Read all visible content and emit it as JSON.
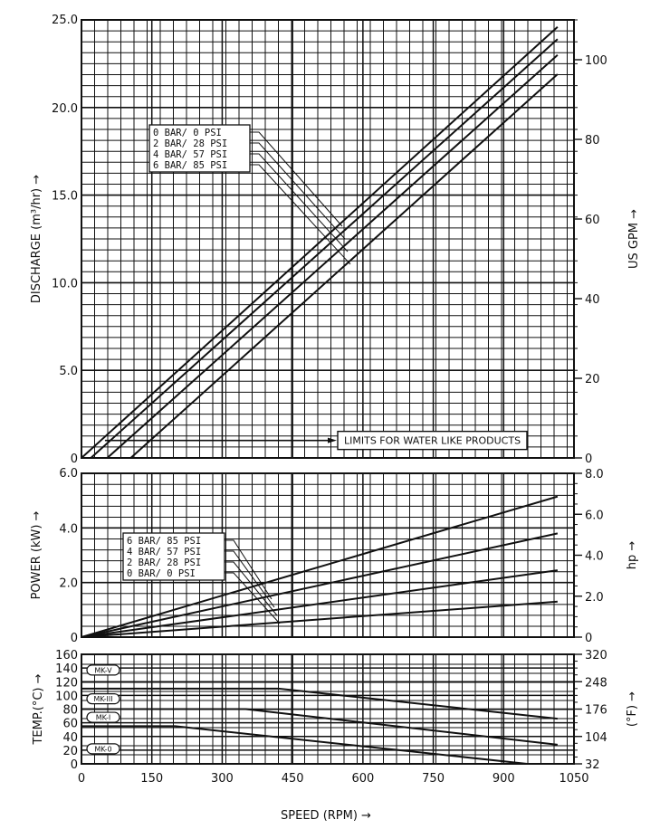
{
  "chart_data": [
    {
      "id": "discharge",
      "type": "line",
      "ylabel": "DISCHARGE (m³/hr) →",
      "y2label": "US GPM →",
      "xlim": [
        0,
        1050
      ],
      "ylim": [
        0,
        25
      ],
      "y2lim": [
        0,
        110
      ],
      "y_ticks": [
        "0",
        "5.0",
        "10.0",
        "15.0",
        "20.0",
        "25.0"
      ],
      "y_tick_values": [
        0,
        5,
        10,
        15,
        20,
        25
      ],
      "y2_ticks": [
        "0",
        "20",
        "40",
        "60",
        "80",
        "100"
      ],
      "y2_tick_values": [
        0,
        20,
        40,
        60,
        80,
        100
      ],
      "grid": true,
      "legend": [
        "0 BAR/ 0 PSI",
        "2 BAR/ 28 PSI",
        "4 BAR/ 57 PSI",
        "6 BAR/ 85 PSI"
      ],
      "series": [
        {
          "name": "0 BAR/ 0 PSI",
          "points": [
            [
              0,
              0
            ],
            [
              1015,
              24.6
            ]
          ]
        },
        {
          "name": "2 BAR/ 28 PSI",
          "points": [
            [
              20,
              0
            ],
            [
              1015,
              23.9
            ]
          ]
        },
        {
          "name": "4 BAR/ 57 PSI",
          "points": [
            [
              55,
              0
            ],
            [
              1015,
              23.0
            ]
          ]
        },
        {
          "name": "6 BAR/ 85 PSI",
          "points": [
            [
              105,
              0
            ],
            [
              1015,
              21.9
            ]
          ]
        }
      ],
      "limit_line": {
        "y": 1.0,
        "x_start": 50,
        "x_end": 520
      },
      "annotation": "LIMITS FOR WATER LIKE PRODUCTS"
    },
    {
      "id": "power",
      "type": "line",
      "ylabel": "POWER (kW) →",
      "y2label": "hp →",
      "xlim": [
        0,
        1050
      ],
      "ylim": [
        0,
        6
      ],
      "y2lim": [
        0,
        8
      ],
      "y_ticks": [
        "0",
        "2.0",
        "4.0",
        "6.0"
      ],
      "y_tick_values": [
        0,
        2,
        4,
        6
      ],
      "y2_ticks": [
        "0",
        "2.0",
        "4.0",
        "6.0",
        "8.0"
      ],
      "y2_tick_values": [
        0,
        2,
        4,
        6,
        8
      ],
      "grid": true,
      "legend": [
        "6 BAR/ 85 PSI",
        "4 BAR/ 57 PSI",
        "2 BAR/ 28 PSI",
        "0 BAR/ 0 PSI"
      ],
      "series": [
        {
          "name": "6 BAR/ 85 PSI",
          "points": [
            [
              0,
              0
            ],
            [
              1015,
              5.15
            ]
          ]
        },
        {
          "name": "4 BAR/ 57 PSI",
          "points": [
            [
              0,
              0
            ],
            [
              1015,
              3.8
            ]
          ]
        },
        {
          "name": "2 BAR/ 28 PSI",
          "points": [
            [
              0,
              0
            ],
            [
              1015,
              2.45
            ]
          ]
        },
        {
          "name": "0 BAR/ 0 PSI",
          "points": [
            [
              0,
              0
            ],
            [
              1015,
              1.3
            ]
          ]
        }
      ]
    },
    {
      "id": "temperature",
      "type": "line",
      "ylabel": "TEMP.(°C) →",
      "y2label": "(°F) →",
      "xlabel": "SPEED (RPM) →",
      "xlim": [
        0,
        1050
      ],
      "ylim": [
        0,
        160
      ],
      "y2lim": [
        32,
        320
      ],
      "x_ticks": [
        "0",
        "150",
        "300",
        "450",
        "600",
        "750",
        "900",
        "1050"
      ],
      "x_tick_values": [
        0,
        150,
        300,
        450,
        600,
        750,
        900,
        1050
      ],
      "y_ticks": [
        "0",
        "20",
        "40",
        "60",
        "80",
        "100",
        "120",
        "140",
        "160"
      ],
      "y_tick_values": [
        0,
        20,
        40,
        60,
        80,
        100,
        120,
        140,
        160
      ],
      "y2_ticks": [
        "32",
        "104",
        "176",
        "248",
        "320"
      ],
      "y2_tick_values": [
        32,
        104,
        176,
        248,
        320
      ],
      "grid": true,
      "series": [
        {
          "name": "MK-V",
          "points": [
            [
              0,
              110
            ],
            [
              420,
              110
            ],
            [
              1015,
              66
            ]
          ]
        },
        {
          "name": "MK-III",
          "points": [
            [
              0,
              80
            ],
            [
              350,
              80
            ],
            [
              1015,
              28
            ]
          ]
        },
        {
          "name": "MK-I",
          "points": [
            [
              0,
              55
            ],
            [
              200,
              55
            ],
            [
              950,
              0
            ]
          ]
        }
      ],
      "tags": [
        {
          "label": "MK-V",
          "y": 137
        },
        {
          "label": "MK-III",
          "y": 95
        },
        {
          "label": "MK-I",
          "y": 68
        },
        {
          "label": "MK-0",
          "y": 22
        }
      ]
    }
  ]
}
